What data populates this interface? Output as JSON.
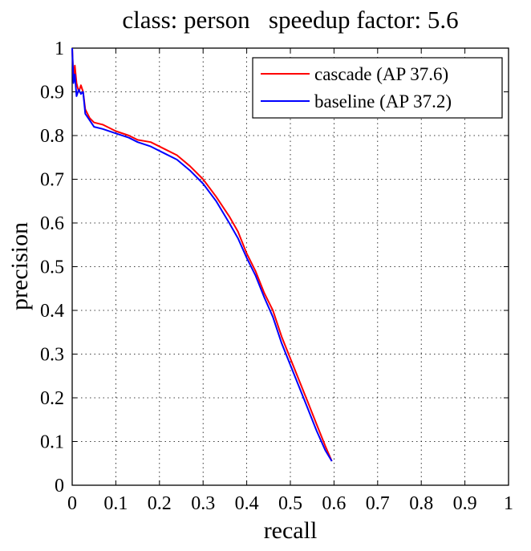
{
  "chart_data": {
    "type": "line",
    "title": "class: person   speedup factor: 5.6",
    "xlabel": "recall",
    "ylabel": "precision",
    "xlim": [
      0,
      1
    ],
    "ylim": [
      0,
      1
    ],
    "grid": true,
    "legend_position": "top-right",
    "x_ticks": [
      "0",
      "0.1",
      "0.2",
      "0.3",
      "0.4",
      "0.5",
      "0.6",
      "0.7",
      "0.8",
      "0.9",
      "1"
    ],
    "y_ticks": [
      "0",
      "0.1",
      "0.2",
      "0.3",
      "0.4",
      "0.5",
      "0.6",
      "0.7",
      "0.8",
      "0.9",
      "1"
    ],
    "series": [
      {
        "name": "cascade (AP 37.6)",
        "color": "#ff0000",
        "points": [
          [
            0.0,
            1.0
          ],
          [
            0.003,
            0.93
          ],
          [
            0.006,
            0.96
          ],
          [
            0.01,
            0.92
          ],
          [
            0.015,
            0.9
          ],
          [
            0.02,
            0.915
          ],
          [
            0.025,
            0.9
          ],
          [
            0.03,
            0.86
          ],
          [
            0.04,
            0.84
          ],
          [
            0.05,
            0.83
          ],
          [
            0.07,
            0.825
          ],
          [
            0.1,
            0.81
          ],
          [
            0.13,
            0.8
          ],
          [
            0.15,
            0.79
          ],
          [
            0.18,
            0.785
          ],
          [
            0.21,
            0.77
          ],
          [
            0.24,
            0.755
          ],
          [
            0.27,
            0.73
          ],
          [
            0.3,
            0.7
          ],
          [
            0.33,
            0.66
          ],
          [
            0.36,
            0.615
          ],
          [
            0.38,
            0.58
          ],
          [
            0.4,
            0.53
          ],
          [
            0.42,
            0.49
          ],
          [
            0.44,
            0.44
          ],
          [
            0.46,
            0.4
          ],
          [
            0.48,
            0.34
          ],
          [
            0.5,
            0.29
          ],
          [
            0.52,
            0.24
          ],
          [
            0.54,
            0.19
          ],
          [
            0.56,
            0.14
          ],
          [
            0.58,
            0.09
          ],
          [
            0.595,
            0.055
          ]
        ]
      },
      {
        "name": "baseline (AP 37.2)",
        "color": "#0000ff",
        "points": [
          [
            0.0,
            1.0
          ],
          [
            0.003,
            0.92
          ],
          [
            0.006,
            0.94
          ],
          [
            0.01,
            0.89
          ],
          [
            0.015,
            0.905
          ],
          [
            0.02,
            0.895
          ],
          [
            0.025,
            0.9
          ],
          [
            0.03,
            0.85
          ],
          [
            0.04,
            0.835
          ],
          [
            0.05,
            0.82
          ],
          [
            0.07,
            0.815
          ],
          [
            0.1,
            0.805
          ],
          [
            0.13,
            0.795
          ],
          [
            0.15,
            0.785
          ],
          [
            0.18,
            0.775
          ],
          [
            0.21,
            0.76
          ],
          [
            0.24,
            0.745
          ],
          [
            0.27,
            0.72
          ],
          [
            0.3,
            0.69
          ],
          [
            0.33,
            0.65
          ],
          [
            0.36,
            0.6
          ],
          [
            0.38,
            0.565
          ],
          [
            0.4,
            0.52
          ],
          [
            0.42,
            0.48
          ],
          [
            0.44,
            0.43
          ],
          [
            0.46,
            0.385
          ],
          [
            0.48,
            0.325
          ],
          [
            0.5,
            0.275
          ],
          [
            0.52,
            0.225
          ],
          [
            0.54,
            0.175
          ],
          [
            0.56,
            0.125
          ],
          [
            0.58,
            0.08
          ],
          [
            0.595,
            0.055
          ]
        ]
      }
    ]
  }
}
